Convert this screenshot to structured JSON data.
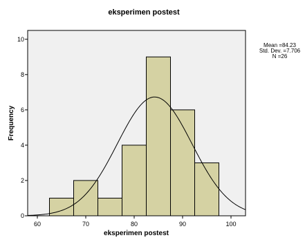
{
  "chart_data": {
    "type": "bar",
    "title": "eksperimen postest",
    "xlabel": "eksperimen postest",
    "ylabel": "Frequency",
    "bin_edges": [
      62.5,
      67.5,
      72.5,
      77.5,
      82.5,
      87.5,
      92.5,
      97.5
    ],
    "values": [
      1,
      2,
      1,
      4,
      9,
      6,
      3
    ],
    "xlim": [
      58,
      103
    ],
    "ylim": [
      0,
      10.5
    ],
    "x_ticks": [
      60,
      70,
      80,
      90,
      100
    ],
    "y_ticks": [
      0,
      2,
      4,
      6,
      8,
      10
    ],
    "normal_curve": {
      "mean": 84.23,
      "sd": 7.706,
      "n": 26,
      "bin_width": 5
    },
    "stats_text": [
      "Mean =84.23",
      "Std. Dev. =7.706",
      "N =26"
    ],
    "plot_background": "#f0f0f0",
    "bar_fill": "#d5d2a3",
    "bar_stroke": "#000000",
    "curve_color": "#000000",
    "grid": false
  }
}
